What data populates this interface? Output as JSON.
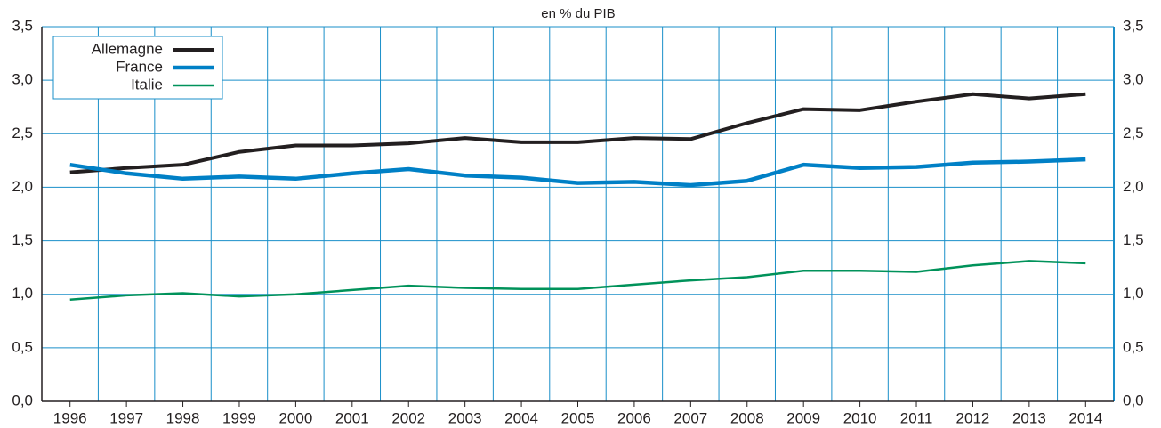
{
  "chart_data": {
    "type": "line",
    "title": "en % du PIB",
    "categories": [
      "1996",
      "1997",
      "1998",
      "1999",
      "2000",
      "2001",
      "2002",
      "2003",
      "2004",
      "2005",
      "2006",
      "2007",
      "2008",
      "2009",
      "2010",
      "2011",
      "2012",
      "2013",
      "2014"
    ],
    "series": [
      {
        "name": "Allemagne",
        "color": "#231f20",
        "values": [
          2.14,
          2.18,
          2.21,
          2.33,
          2.39,
          2.39,
          2.41,
          2.46,
          2.42,
          2.42,
          2.46,
          2.45,
          2.6,
          2.73,
          2.72,
          2.8,
          2.87,
          2.83,
          2.87
        ]
      },
      {
        "name": "France",
        "color": "#0080c6",
        "values": [
          2.21,
          2.13,
          2.08,
          2.1,
          2.08,
          2.13,
          2.17,
          2.11,
          2.09,
          2.04,
          2.05,
          2.02,
          2.06,
          2.21,
          2.18,
          2.19,
          2.23,
          2.24,
          2.26
        ]
      },
      {
        "name": "Italie",
        "color": "#00925a",
        "values": [
          0.95,
          0.99,
          1.01,
          0.98,
          1.0,
          1.04,
          1.08,
          1.06,
          1.05,
          1.05,
          1.09,
          1.13,
          1.16,
          1.22,
          1.22,
          1.21,
          1.27,
          1.31,
          1.29
        ]
      }
    ],
    "ylim": [
      0,
      3.5
    ],
    "yticks": [
      {
        "value": 0,
        "label": "0,0"
      },
      {
        "value": 0.5,
        "label": "0,5"
      },
      {
        "value": 1,
        "label": "1,0"
      },
      {
        "value": 1.5,
        "label": "1,5"
      },
      {
        "value": 2,
        "label": "2,0"
      },
      {
        "value": 2.5,
        "label": "2,5"
      },
      {
        "value": 3,
        "label": "3,0"
      },
      {
        "value": 3.5,
        "label": "3,5"
      }
    ],
    "grid": true,
    "legend": "top-left"
  }
}
